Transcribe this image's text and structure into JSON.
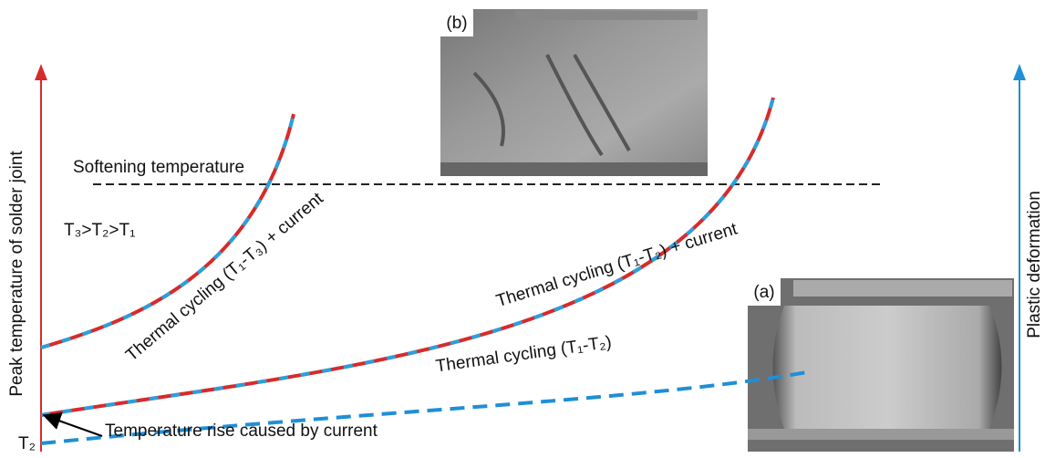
{
  "axes": {
    "left_label": "Peak temperature of solder joint",
    "right_label": "Plastic deformation"
  },
  "images": {
    "b_label": "(b)",
    "a_label": "(a)"
  },
  "reference": {
    "softening": "Softening temperature",
    "order": "T₃>T₂>T₁",
    "t2": "T₂",
    "rise": "Temperature rise caused by current"
  },
  "curves": [
    {
      "label": "Thermal cycling (T₁-T₃) + current"
    },
    {
      "label": "Thermal cycling (T₁-T₂) + current"
    },
    {
      "label": "Thermal cycling (T₁-T₂)"
    }
  ]
}
